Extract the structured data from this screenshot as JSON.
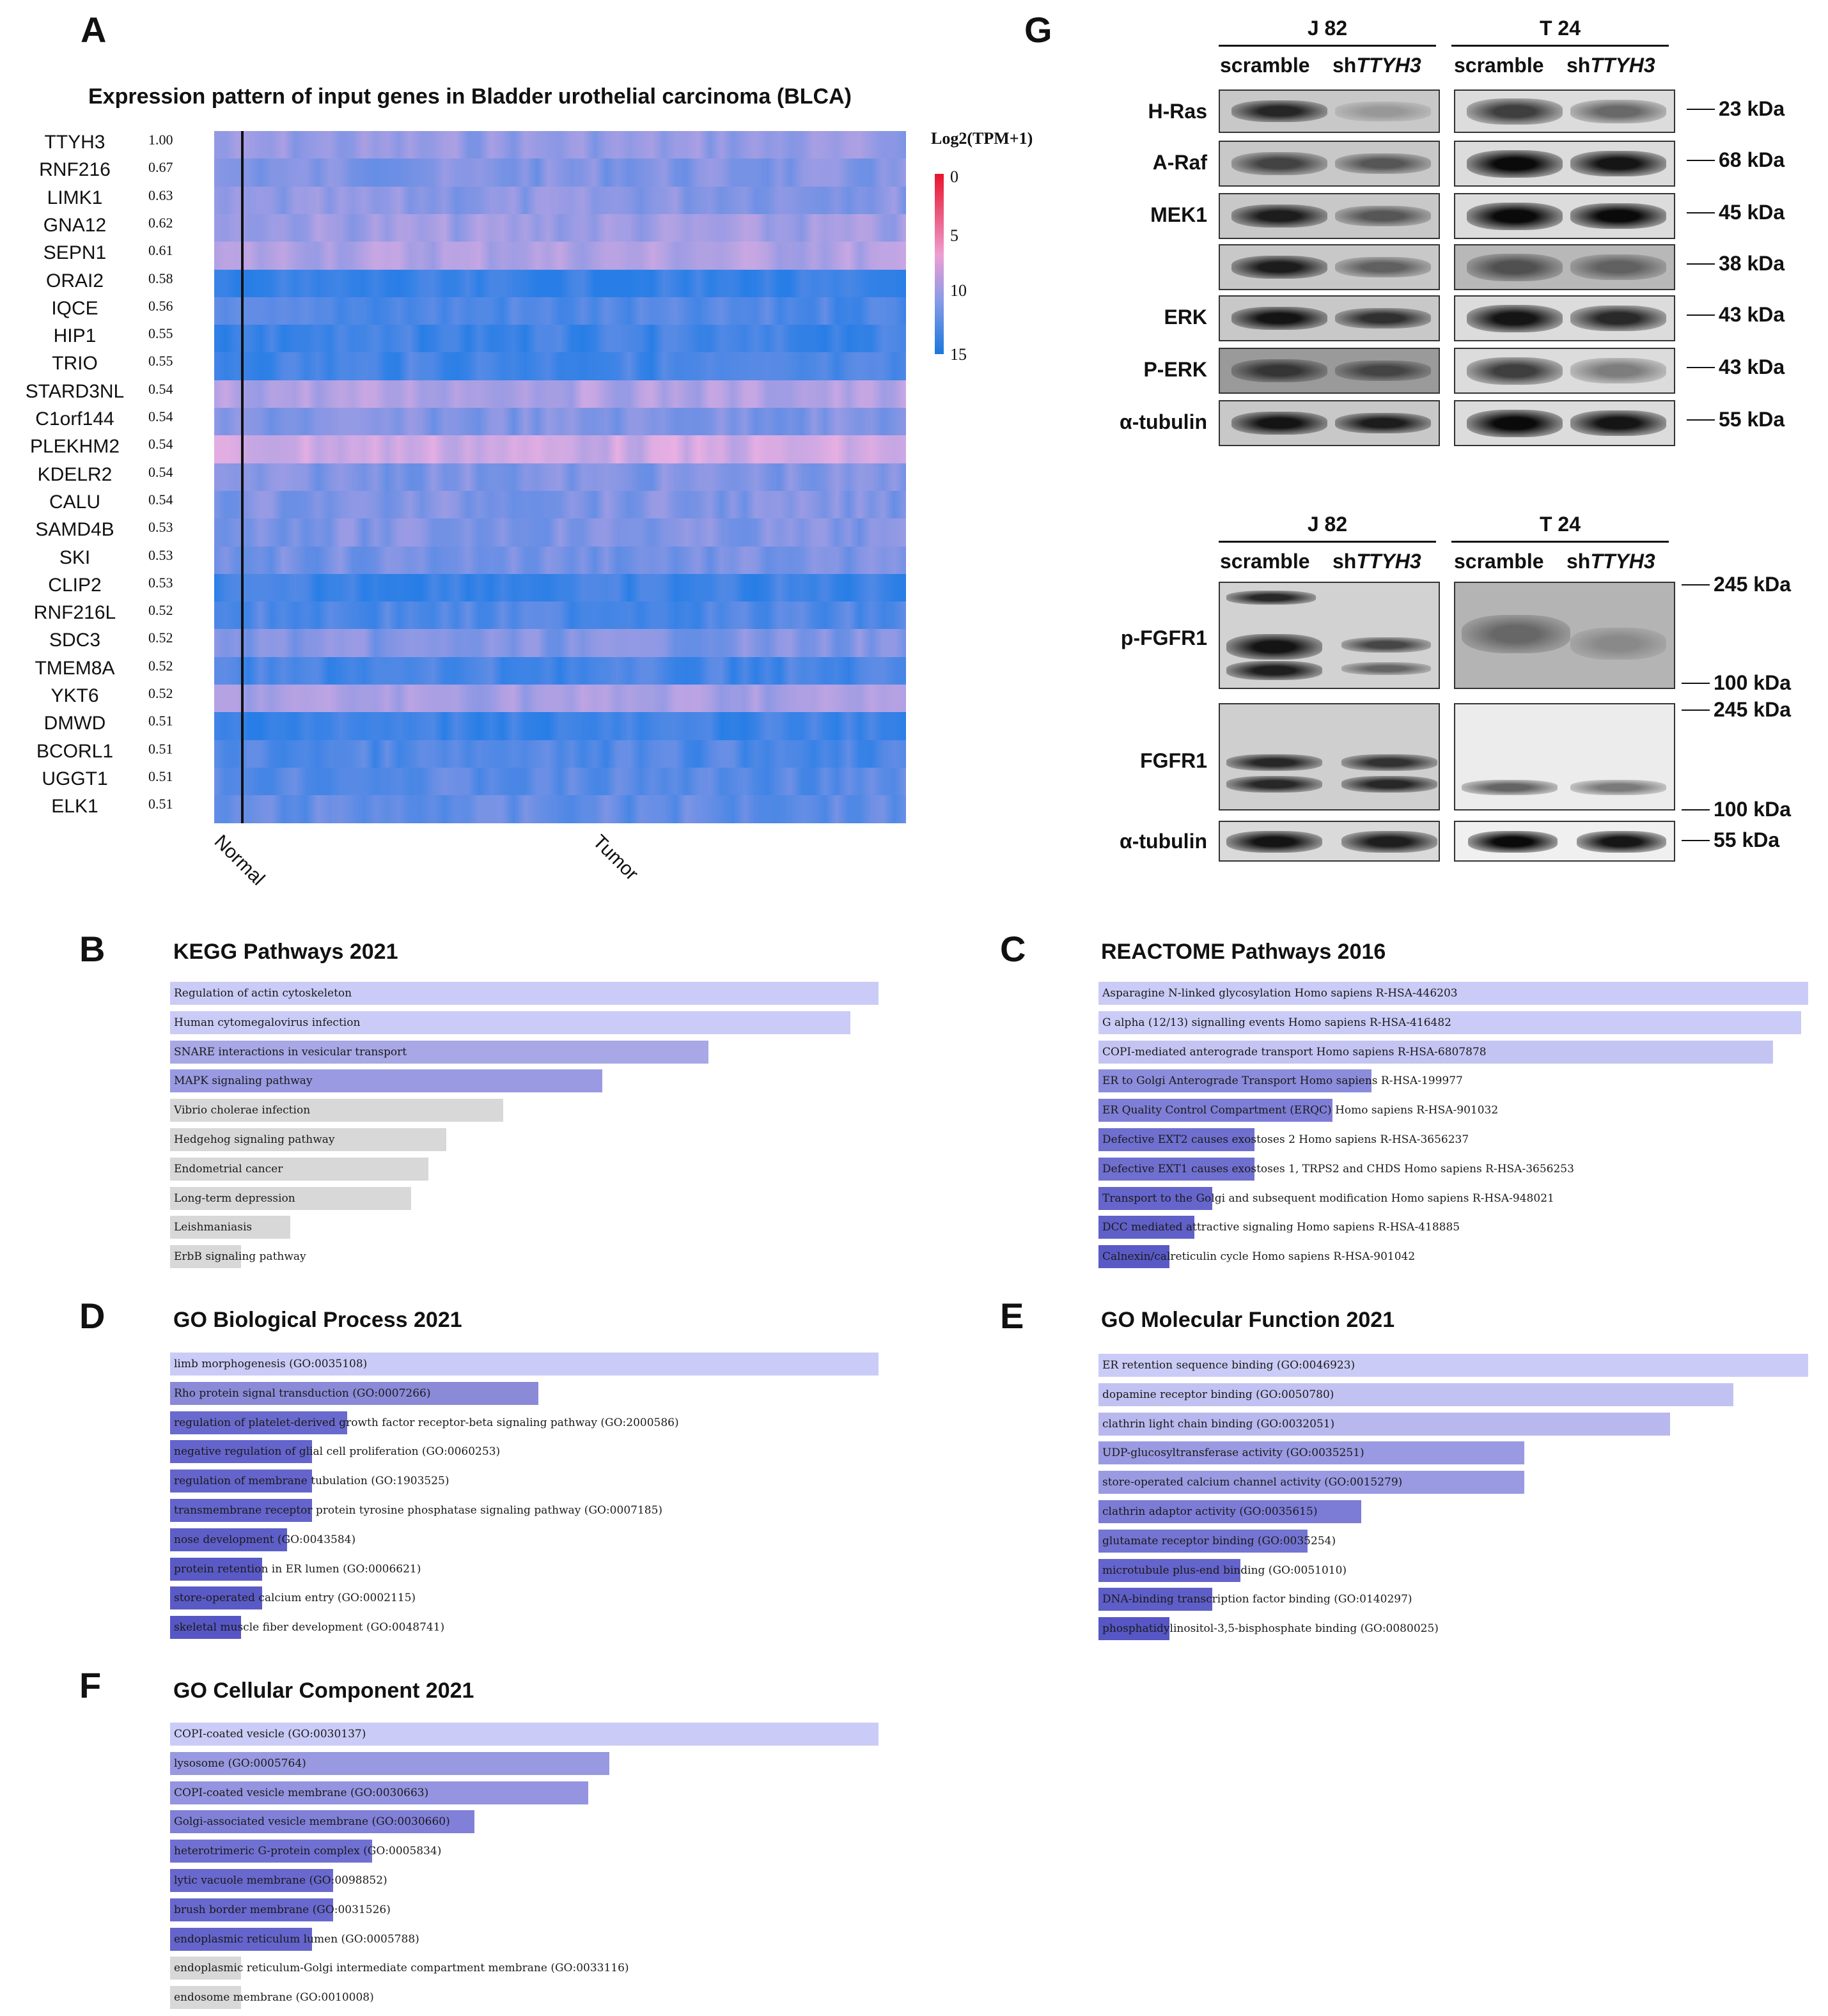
{
  "panels": {
    "A": "A",
    "B": "B",
    "C": "C",
    "D": "D",
    "E": "E",
    "F": "F",
    "G": "G"
  },
  "heatmap": {
    "title": "Expression pattern of input genes in Bladder urothelial carcinoma (BLCA)",
    "genes": [
      "TTYH3",
      "RNF216",
      "LIMK1",
      "GNA12",
      "SEPN1",
      "ORAI2",
      "IQCE",
      "HIP1",
      "TRIO",
      "STARD3NL",
      "C1orf144",
      "PLEKHM2",
      "KDELR2",
      "CALU",
      "SAMD4B",
      "SKI",
      "CLIP2",
      "RNF216L",
      "SDC3",
      "TMEM8A",
      "YKT6",
      "DMWD",
      "BCORL1",
      "UGGT1",
      "ELK1"
    ],
    "correlations": [
      "1.00",
      "0.67",
      "0.63",
      "0.62",
      "0.61",
      "0.58",
      "0.56",
      "0.55",
      "0.55",
      "0.54",
      "0.54",
      "0.54",
      "0.54",
      "0.54",
      "0.53",
      "0.53",
      "0.53",
      "0.52",
      "0.52",
      "0.52",
      "0.52",
      "0.51",
      "0.51",
      "0.51",
      "0.51"
    ],
    "row_intensity": [
      0.45,
      0.55,
      0.5,
      0.4,
      0.3,
      0.95,
      0.8,
      0.9,
      0.85,
      0.3,
      0.55,
      0.15,
      0.55,
      0.55,
      0.55,
      0.6,
      0.9,
      0.8,
      0.55,
      0.85,
      0.35,
      0.9,
      0.8,
      0.75,
      0.7
    ],
    "legend_title": "Log2(TPM+1)",
    "legend_ticks": [
      "0",
      "5",
      "10",
      "15"
    ],
    "legend_colors": {
      "low": "#e8142c",
      "mid": "#ee9ed2",
      "high": "#1a78dc"
    },
    "x_labels": [
      "Normal",
      "Tumor"
    ]
  },
  "kegg": {
    "title": "KEGG Pathways 2021",
    "items": [
      {
        "label": "Regulation of actin cytoskeleton",
        "value": 1.0,
        "color": "#cbcbf7"
      },
      {
        "label": "Human cytomegalovirus infection",
        "value": 0.96,
        "color": "#cbcbf7"
      },
      {
        "label": "SNARE interactions in vesicular transport",
        "value": 0.76,
        "color": "#a8a8e6"
      },
      {
        "label": "MAPK signaling pathway",
        "value": 0.61,
        "color": "#9a9ae2"
      },
      {
        "label": "Vibrio cholerae infection",
        "value": 0.47,
        "color": "#d8d8d8"
      },
      {
        "label": "Hedgehog signaling pathway",
        "value": 0.39,
        "color": "#d8d8d8"
      },
      {
        "label": "Endometrial cancer",
        "value": 0.365,
        "color": "#d8d8d8"
      },
      {
        "label": "Long-term depression",
        "value": 0.34,
        "color": "#d8d8d8"
      },
      {
        "label": "Leishmaniasis",
        "value": 0.17,
        "color": "#d8d8d8"
      },
      {
        "label": "ErbB signaling pathway",
        "value": 0.1,
        "color": "#d8d8d8"
      }
    ]
  },
  "reactome": {
    "title": "REACTOME Pathways 2016",
    "items": [
      {
        "label": "Asparagine N-linked glycosylation Homo sapiens R-HSA-446203",
        "value": 1.0,
        "color": "#cbcbf7"
      },
      {
        "label": "G alpha (12/13) signalling events Homo sapiens R-HSA-416482",
        "value": 0.99,
        "color": "#cbcbf7"
      },
      {
        "label": "COPI-mediated anterograde transport Homo sapiens R-HSA-6807878",
        "value": 0.95,
        "color": "#c4c4f3"
      },
      {
        "label": "ER to Golgi Anterograde Transport Homo sapiens R-HSA-199977",
        "value": 0.385,
        "color": "#8c8cdc"
      },
      {
        "label": "ER Quality Control Compartment (ERQC) Homo sapiens R-HSA-901032",
        "value": 0.33,
        "color": "#7e7ed6"
      },
      {
        "label": "Defective EXT2 causes exostoses 2 Homo sapiens R-HSA-3656237",
        "value": 0.22,
        "color": "#6f6fd0"
      },
      {
        "label": "Defective EXT1 causes exostoses 1, TRPS2 and CHDS Homo sapiens R-HSA-3656253",
        "value": 0.22,
        "color": "#6f6fd0"
      },
      {
        "label": "Transport to the Golgi and subsequent modification Homo sapiens R-HSA-948021",
        "value": 0.16,
        "color": "#6565cc"
      },
      {
        "label": "DCC mediated attractive signaling Homo sapiens R-HSA-418885",
        "value": 0.135,
        "color": "#6060c8"
      },
      {
        "label": "Calnexin/calreticulin cycle Homo sapiens R-HSA-901042",
        "value": 0.1,
        "color": "#5a5ac6"
      }
    ]
  },
  "go_bp": {
    "title": "GO Biological Process 2021",
    "items": [
      {
        "label": "limb morphogenesis (GO:0035108)",
        "value": 1.0,
        "color": "#cbcbf7"
      },
      {
        "label": "Rho protein signal transduction (GO:0007266)",
        "value": 0.52,
        "color": "#8a8ad8"
      },
      {
        "label": "regulation of platelet-derived growth factor receptor-beta signaling pathway (GO:2000586)",
        "value": 0.25,
        "color": "#6a6ace"
      },
      {
        "label": "negative regulation of glial cell proliferation (GO:0060253)",
        "value": 0.2,
        "color": "#6464cc"
      },
      {
        "label": "regulation of membrane tubulation (GO:1903525)",
        "value": 0.2,
        "color": "#6464cc"
      },
      {
        "label": "transmembrane receptor protein tyrosine phosphatase signaling pathway (GO:0007185)",
        "value": 0.2,
        "color": "#6464cc"
      },
      {
        "label": "nose development (GO:0043584)",
        "value": 0.165,
        "color": "#5e5ec8"
      },
      {
        "label": "protein retention in ER lumen (GO:0006621)",
        "value": 0.13,
        "color": "#5a5ac6"
      },
      {
        "label": "store-operated calcium entry (GO:0002115)",
        "value": 0.13,
        "color": "#5a5ac6"
      },
      {
        "label": "skeletal muscle fiber development (GO:0048741)",
        "value": 0.1,
        "color": "#5656c4"
      }
    ]
  },
  "go_mf": {
    "title": "GO Molecular Function 2021",
    "items": [
      {
        "label": "ER retention sequence binding (GO:0046923)",
        "value": 1.0,
        "color": "#cbcbf7"
      },
      {
        "label": "dopamine receptor binding (GO:0050780)",
        "value": 0.895,
        "color": "#c2c2f2"
      },
      {
        "label": "clathrin light chain binding (GO:0032051)",
        "value": 0.805,
        "color": "#b8b8ee"
      },
      {
        "label": "UDP-glucosyltransferase activity (GO:0035251)",
        "value": 0.6,
        "color": "#9a9ae2"
      },
      {
        "label": "store-operated calcium channel activity (GO:0015279)",
        "value": 0.6,
        "color": "#9a9ae2"
      },
      {
        "label": "clathrin adaptor activity (GO:0035615)",
        "value": 0.37,
        "color": "#7c7cd6"
      },
      {
        "label": "glutamate receptor binding (GO:0035254)",
        "value": 0.295,
        "color": "#7474d2"
      },
      {
        "label": "microtubule plus-end binding (GO:0051010)",
        "value": 0.2,
        "color": "#6464cc"
      },
      {
        "label": "DNA-binding transcription factor binding (GO:0140297)",
        "value": 0.16,
        "color": "#5e5ec8"
      },
      {
        "label": "phosphatidylinositol-3,5-bisphosphate binding (GO:0080025)",
        "value": 0.1,
        "color": "#5656c4"
      }
    ]
  },
  "go_cc": {
    "title": "GO Cellular Component  2021",
    "items": [
      {
        "label": "COPI-coated vesicle (GO:0030137)",
        "value": 1.0,
        "color": "#cbcbf7"
      },
      {
        "label": "lysosome (GO:0005764)",
        "value": 0.62,
        "color": "#9999e2"
      },
      {
        "label": "COPI-coated vesicle membrane (GO:0030663)",
        "value": 0.59,
        "color": "#9494e0"
      },
      {
        "label": "Golgi-associated vesicle membrane (GO:0030660)",
        "value": 0.43,
        "color": "#8080d8"
      },
      {
        "label": "heterotrimeric G-protein complex (GO:0005834)",
        "value": 0.285,
        "color": "#7070d2"
      },
      {
        "label": "lytic vacuole membrane (GO:0098852)",
        "value": 0.23,
        "color": "#6868ce"
      },
      {
        "label": "brush border membrane (GO:0031526)",
        "value": 0.23,
        "color": "#6868ce"
      },
      {
        "label": "endoplasmic reticulum lumen (GO:0005788)",
        "value": 0.2,
        "color": "#6464cc"
      },
      {
        "label": "endoplasmic reticulum-Golgi intermediate compartment membrane (GO:0033116)",
        "value": 0.1,
        "color": "#d8d8d8"
      },
      {
        "label": "endosome membrane (GO:0010008)",
        "value": 0.1,
        "color": "#d8d8d8"
      }
    ]
  },
  "blot_top": {
    "groups": [
      "J 82",
      "T 24"
    ],
    "conditions": [
      "scramble",
      "sh",
      "TTYH3"
    ],
    "proteins": [
      "H-Ras",
      "A-Raf",
      "MEK1",
      "",
      "ERK",
      "P-ERK",
      "α-tubulin"
    ],
    "kda": [
      "23 kDa",
      "68 kDa",
      "45 kDa",
      "38 kDa",
      "43 kDa",
      "43 kDa",
      "55 kDa"
    ]
  },
  "blot_bottom": {
    "groups": [
      "J 82",
      "T 24"
    ],
    "conditions": [
      "scramble",
      "sh",
      "TTYH3"
    ],
    "proteins": [
      "p-FGFR1",
      "FGFR1",
      "α-tubulin"
    ],
    "kda": [
      "245 kDa",
      "100 kDa",
      "245 kDa",
      "100 kDa",
      "55 kDa"
    ]
  }
}
